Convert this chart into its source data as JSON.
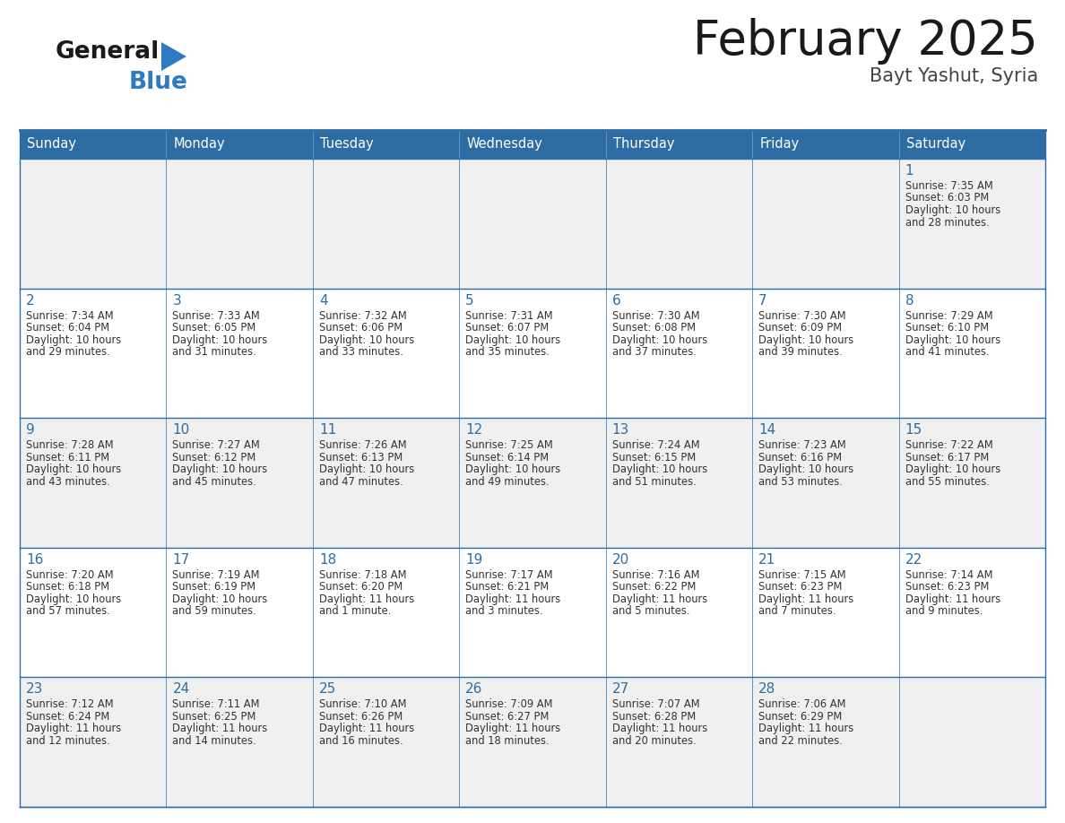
{
  "title": "February 2025",
  "subtitle": "Bayt Yashut, Syria",
  "days_of_week": [
    "Sunday",
    "Monday",
    "Tuesday",
    "Wednesday",
    "Thursday",
    "Friday",
    "Saturday"
  ],
  "header_bg_color": "#2E6DA4",
  "header_text_color": "#FFFFFF",
  "cell_bg_even": "#F0F0F0",
  "cell_bg_odd": "#FFFFFF",
  "day_number_color": "#2E6DA4",
  "info_text_color": "#333333",
  "border_color": "#2E6DA4",
  "title_color": "#1a1a1a",
  "subtitle_color": "#444444",
  "logo_general_color": "#1a1a1a",
  "logo_blue_color": "#2E7BC4",
  "weeks": [
    [
      {
        "day": null,
        "sunrise": null,
        "sunset": null,
        "daylight": null
      },
      {
        "day": null,
        "sunrise": null,
        "sunset": null,
        "daylight": null
      },
      {
        "day": null,
        "sunrise": null,
        "sunset": null,
        "daylight": null
      },
      {
        "day": null,
        "sunrise": null,
        "sunset": null,
        "daylight": null
      },
      {
        "day": null,
        "sunrise": null,
        "sunset": null,
        "daylight": null
      },
      {
        "day": null,
        "sunrise": null,
        "sunset": null,
        "daylight": null
      },
      {
        "day": 1,
        "sunrise": "7:35 AM",
        "sunset": "6:03 PM",
        "daylight_line1": "Daylight: 10 hours",
        "daylight_line2": "and 28 minutes."
      }
    ],
    [
      {
        "day": 2,
        "sunrise": "7:34 AM",
        "sunset": "6:04 PM",
        "daylight_line1": "Daylight: 10 hours",
        "daylight_line2": "and 29 minutes."
      },
      {
        "day": 3,
        "sunrise": "7:33 AM",
        "sunset": "6:05 PM",
        "daylight_line1": "Daylight: 10 hours",
        "daylight_line2": "and 31 minutes."
      },
      {
        "day": 4,
        "sunrise": "7:32 AM",
        "sunset": "6:06 PM",
        "daylight_line1": "Daylight: 10 hours",
        "daylight_line2": "and 33 minutes."
      },
      {
        "day": 5,
        "sunrise": "7:31 AM",
        "sunset": "6:07 PM",
        "daylight_line1": "Daylight: 10 hours",
        "daylight_line2": "and 35 minutes."
      },
      {
        "day": 6,
        "sunrise": "7:30 AM",
        "sunset": "6:08 PM",
        "daylight_line1": "Daylight: 10 hours",
        "daylight_line2": "and 37 minutes."
      },
      {
        "day": 7,
        "sunrise": "7:30 AM",
        "sunset": "6:09 PM",
        "daylight_line1": "Daylight: 10 hours",
        "daylight_line2": "and 39 minutes."
      },
      {
        "day": 8,
        "sunrise": "7:29 AM",
        "sunset": "6:10 PM",
        "daylight_line1": "Daylight: 10 hours",
        "daylight_line2": "and 41 minutes."
      }
    ],
    [
      {
        "day": 9,
        "sunrise": "7:28 AM",
        "sunset": "6:11 PM",
        "daylight_line1": "Daylight: 10 hours",
        "daylight_line2": "and 43 minutes."
      },
      {
        "day": 10,
        "sunrise": "7:27 AM",
        "sunset": "6:12 PM",
        "daylight_line1": "Daylight: 10 hours",
        "daylight_line2": "and 45 minutes."
      },
      {
        "day": 11,
        "sunrise": "7:26 AM",
        "sunset": "6:13 PM",
        "daylight_line1": "Daylight: 10 hours",
        "daylight_line2": "and 47 minutes."
      },
      {
        "day": 12,
        "sunrise": "7:25 AM",
        "sunset": "6:14 PM",
        "daylight_line1": "Daylight: 10 hours",
        "daylight_line2": "and 49 minutes."
      },
      {
        "day": 13,
        "sunrise": "7:24 AM",
        "sunset": "6:15 PM",
        "daylight_line1": "Daylight: 10 hours",
        "daylight_line2": "and 51 minutes."
      },
      {
        "day": 14,
        "sunrise": "7:23 AM",
        "sunset": "6:16 PM",
        "daylight_line1": "Daylight: 10 hours",
        "daylight_line2": "and 53 minutes."
      },
      {
        "day": 15,
        "sunrise": "7:22 AM",
        "sunset": "6:17 PM",
        "daylight_line1": "Daylight: 10 hours",
        "daylight_line2": "and 55 minutes."
      }
    ],
    [
      {
        "day": 16,
        "sunrise": "7:20 AM",
        "sunset": "6:18 PM",
        "daylight_line1": "Daylight: 10 hours",
        "daylight_line2": "and 57 minutes."
      },
      {
        "day": 17,
        "sunrise": "7:19 AM",
        "sunset": "6:19 PM",
        "daylight_line1": "Daylight: 10 hours",
        "daylight_line2": "and 59 minutes."
      },
      {
        "day": 18,
        "sunrise": "7:18 AM",
        "sunset": "6:20 PM",
        "daylight_line1": "Daylight: 11 hours",
        "daylight_line2": "and 1 minute."
      },
      {
        "day": 19,
        "sunrise": "7:17 AM",
        "sunset": "6:21 PM",
        "daylight_line1": "Daylight: 11 hours",
        "daylight_line2": "and 3 minutes."
      },
      {
        "day": 20,
        "sunrise": "7:16 AM",
        "sunset": "6:22 PM",
        "daylight_line1": "Daylight: 11 hours",
        "daylight_line2": "and 5 minutes."
      },
      {
        "day": 21,
        "sunrise": "7:15 AM",
        "sunset": "6:23 PM",
        "daylight_line1": "Daylight: 11 hours",
        "daylight_line2": "and 7 minutes."
      },
      {
        "day": 22,
        "sunrise": "7:14 AM",
        "sunset": "6:23 PM",
        "daylight_line1": "Daylight: 11 hours",
        "daylight_line2": "and 9 minutes."
      }
    ],
    [
      {
        "day": 23,
        "sunrise": "7:12 AM",
        "sunset": "6:24 PM",
        "daylight_line1": "Daylight: 11 hours",
        "daylight_line2": "and 12 minutes."
      },
      {
        "day": 24,
        "sunrise": "7:11 AM",
        "sunset": "6:25 PM",
        "daylight_line1": "Daylight: 11 hours",
        "daylight_line2": "and 14 minutes."
      },
      {
        "day": 25,
        "sunrise": "7:10 AM",
        "sunset": "6:26 PM",
        "daylight_line1": "Daylight: 11 hours",
        "daylight_line2": "and 16 minutes."
      },
      {
        "day": 26,
        "sunrise": "7:09 AM",
        "sunset": "6:27 PM",
        "daylight_line1": "Daylight: 11 hours",
        "daylight_line2": "and 18 minutes."
      },
      {
        "day": 27,
        "sunrise": "7:07 AM",
        "sunset": "6:28 PM",
        "daylight_line1": "Daylight: 11 hours",
        "daylight_line2": "and 20 minutes."
      },
      {
        "day": 28,
        "sunrise": "7:06 AM",
        "sunset": "6:29 PM",
        "daylight_line1": "Daylight: 11 hours",
        "daylight_line2": "and 22 minutes."
      },
      {
        "day": null,
        "sunrise": null,
        "sunset": null,
        "daylight_line1": null,
        "daylight_line2": null
      }
    ]
  ]
}
